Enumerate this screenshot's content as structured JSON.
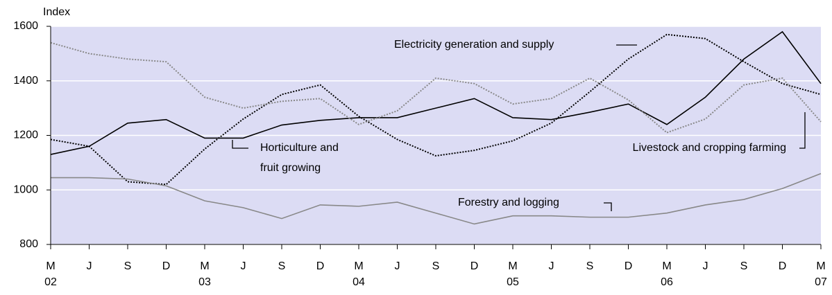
{
  "chart_data": {
    "type": "line",
    "ylabel": "Index",
    "categories": [
      "M",
      "J",
      "S",
      "D",
      "M",
      "J",
      "S",
      "D",
      "M",
      "J",
      "S",
      "D",
      "M",
      "J",
      "S",
      "D",
      "M",
      "J",
      "S",
      "D",
      "M"
    ],
    "category_years": [
      "02",
      null,
      null,
      null,
      "03",
      null,
      null,
      null,
      "04",
      null,
      null,
      null,
      "05",
      null,
      null,
      null,
      "06",
      null,
      null,
      null,
      "07"
    ],
    "ylim": [
      800,
      1600
    ],
    "yticks": [
      800,
      1000,
      1200,
      1400,
      1600
    ],
    "grid": true,
    "series": [
      {
        "color": "#000000",
        "style": "solid",
        "values": [
          1130,
          1160,
          1245,
          1258,
          1190,
          1190,
          1238,
          1255,
          1265,
          1265,
          1300,
          1335,
          1265,
          1258,
          1285,
          1315,
          1240,
          1340,
          1480,
          1580,
          1390
        ]
      },
      {
        "color": "#000000",
        "style": "dotted",
        "values": [
          1185,
          1160,
          1030,
          1020,
          1150,
          1260,
          1350,
          1385,
          1270,
          1185,
          1125,
          1145,
          1180,
          1245,
          1360,
          1480,
          1570,
          1555,
          1470,
          1390,
          1350
        ]
      },
      {
        "color": "#888888",
        "style": "dotted",
        "values": [
          1540,
          1500,
          1480,
          1470,
          1340,
          1300,
          1325,
          1335,
          1240,
          1290,
          1410,
          1390,
          1315,
          1335,
          1410,
          1330,
          1210,
          1260,
          1385,
          1410,
          1250
        ]
      },
      {
        "color": "#888888",
        "style": "solid",
        "values": [
          1045,
          1045,
          1040,
          1015,
          960,
          935,
          895,
          945,
          940,
          955,
          915,
          875,
          905,
          905,
          900,
          900,
          915,
          945,
          965,
          1005,
          1060
        ]
      }
    ],
    "annotations": [
      "Electricity generation and supply",
      "Horticulture and",
      "fruit growing",
      "Livestock and cropping farming",
      "Forestry and logging"
    ]
  }
}
